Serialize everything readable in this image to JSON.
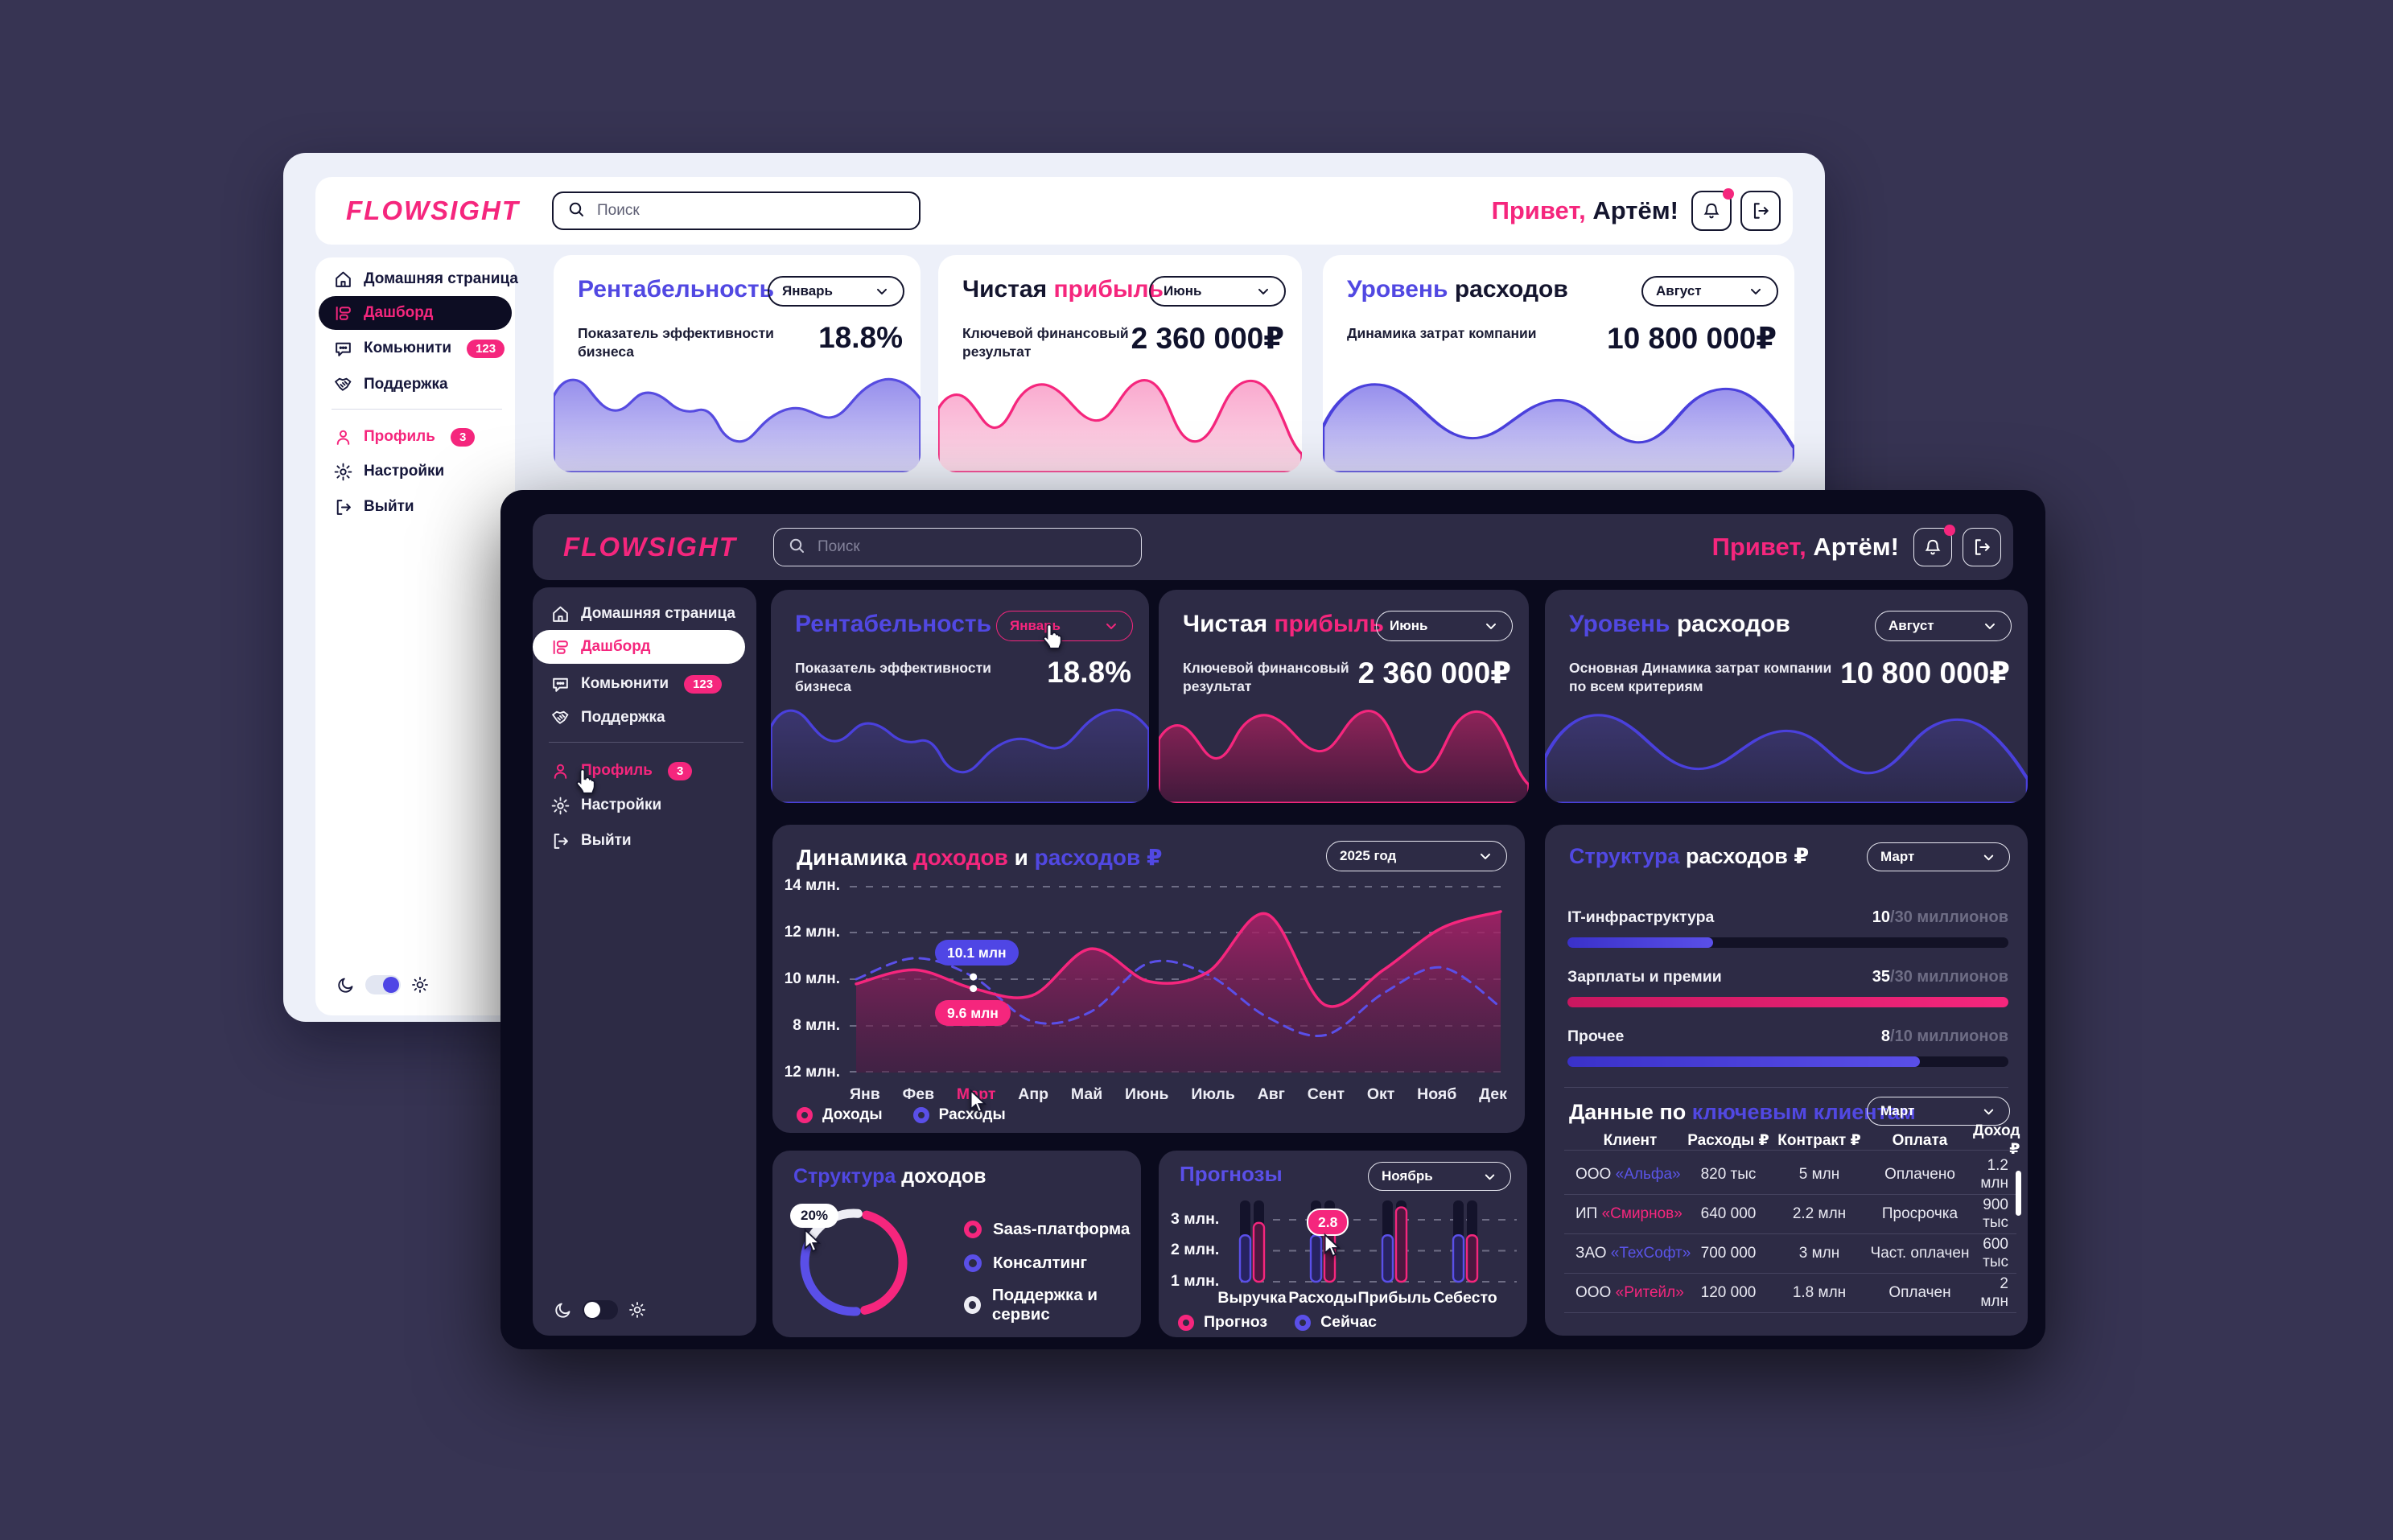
{
  "brand": {
    "logo": "FLOWSIGHT"
  },
  "header": {
    "search_placeholder": "Поиск",
    "greeting_hello": "Привет,",
    "greeting_name": " Артём!"
  },
  "sidebar": {
    "home": "Домашняя страница",
    "dashboard": "Дашборд",
    "community": "Комьюнити",
    "community_badge": "123",
    "support": "Поддержка",
    "profile": "Профиль",
    "profile_badge": "3",
    "settings": "Настройки",
    "logout": "Выйти"
  },
  "light_kpis": {
    "k1": {
      "title": "Рентабельность",
      "period": "Январь",
      "desc": "Показатель эффективности бизнеса",
      "value": "18.8%"
    },
    "k2": {
      "title_a": "Чистая",
      "title_b": "прибыль",
      "period": "Июнь",
      "desc": "Ключевой финансовый результат",
      "value": "2 360 000₽"
    },
    "k3": {
      "title_a": "Уровень",
      "title_b": "расходов",
      "period": "Август",
      "desc": "Динамика затрат компании",
      "value": "10 800 000₽"
    }
  },
  "dark_kpis": {
    "k1": {
      "title": "Рентабельность",
      "period": "Январь",
      "desc": "Показатель эффективности бизнеса",
      "value": "18.8%"
    },
    "k2": {
      "title_a": "Чистая",
      "title_b": "прибыль",
      "period": "Июнь",
      "desc": "Ключевой финансовый результат",
      "value": "2 360 000₽"
    },
    "k3": {
      "title_a": "Уровень",
      "title_b": "расходов",
      "period": "Август",
      "desc": "Основная Динамика затрат компании по всем критериям",
      "value": "10 800 000₽"
    }
  },
  "dynamics": {
    "title_a": "Динамика",
    "title_b": "доходов",
    "title_c": "и",
    "title_d": "расходов ₽",
    "period": "2025 год",
    "y_labels": [
      "14 млн.",
      "12 млн.",
      "10 млн.",
      "8 млн.",
      "12 млн."
    ],
    "tooltip_expenses": "10.1 млн",
    "tooltip_income": "9.6 млн",
    "legend_income": "Доходы",
    "legend_expenses": "Расходы"
  },
  "expenses_structure": {
    "title_a": "Структура",
    "title_b": "расходов ₽",
    "period": "Март",
    "items": [
      {
        "label": "IT-инфраструктура",
        "value": "10",
        "total": "/30 миллионов"
      },
      {
        "label": "Зарплаты и премии",
        "value": "35",
        "total": "/30 миллионов"
      },
      {
        "label": "Прочее",
        "value": "8",
        "total": "/10 миллионов"
      }
    ]
  },
  "clients": {
    "title_a": "Данные по",
    "title_b": "ключевым клиентам",
    "period": "Март",
    "headers": [
      "Клиент",
      "Расходы ₽",
      "Контракт ₽",
      "Оплата",
      "Доход ₽"
    ],
    "rows": [
      {
        "org": "ООО",
        "name": "«Альфа»",
        "expenses": "820 тыс",
        "contract": "5 млн",
        "payment": "Оплачено",
        "income": "1.2 млн"
      },
      {
        "org": "ИП",
        "name": "«Смирнов»",
        "expenses": "640 000",
        "contract": "2.2 млн",
        "payment": "Просрочка",
        "income": "900 тыс"
      },
      {
        "org": "ЗАО",
        "name": "«ТехСофт»",
        "expenses": "700 000",
        "contract": "3 млн",
        "payment": "Част. оплачен",
        "income": "600 тыс"
      },
      {
        "org": "ООО",
        "name": "«Ритейл»",
        "expenses": "120 000",
        "contract": "1.8 млн",
        "payment": "Оплачен",
        "income": "2 млн"
      }
    ]
  },
  "income_structure": {
    "title_a": "Структура",
    "title_b": "доходов",
    "tooltip": "20%",
    "legend": [
      "Saas-платформа",
      "Консалтинг",
      "Поддержка и сервис"
    ]
  },
  "forecast": {
    "title": "Прогнозы",
    "period": "Ноябрь",
    "y_labels": [
      "3 млн.",
      "2 млн.",
      "1 млн."
    ],
    "categories": [
      "Выручка",
      "Расходы",
      "Прибыль",
      "Себесто"
    ],
    "tooltip": "2.8",
    "legend_forecast": "Прогноз",
    "legend_now": "Сейчас"
  },
  "chart_data": [
    {
      "type": "line",
      "title": "Динамика доходов и расходов ₽ (2025 год)",
      "x": [
        "Янв",
        "Фев",
        "Март",
        "Апр",
        "Май",
        "Июнь",
        "Июль",
        "Авг",
        "Сент",
        "Окт",
        "Нояб",
        "Дек"
      ],
      "series": [
        {
          "name": "Доходы",
          "color": "#F5267D",
          "style": "solid-area",
          "values": [
            9.8,
            10.4,
            9.6,
            9.3,
            11.3,
            9.9,
            10.3,
            12.8,
            8.9,
            10.4,
            12.2,
            12.9
          ]
        },
        {
          "name": "Расходы",
          "color": "#5A4FE8",
          "style": "dashed",
          "values": [
            10.0,
            10.9,
            10.1,
            8.2,
            8.6,
            10.7,
            10.2,
            8.4,
            7.6,
            9.4,
            10.5,
            8.8
          ]
        }
      ],
      "highlight": {
        "month": "Март",
        "income_mln": 9.6,
        "expenses_mln": 10.1
      },
      "ylabel": "млн ₽",
      "ylim": [
        6,
        14
      ],
      "grid": true,
      "legend_position": "bottom"
    },
    {
      "type": "pie",
      "title": "Структура доходов",
      "labels": [
        "Saas-платформа",
        "Консалтинг",
        "Поддержка и сервис"
      ],
      "values": [
        45,
        35,
        20
      ],
      "colors": [
        "#F5267D",
        "#5A4FE8",
        "#EDEDF4"
      ],
      "highlight": {
        "label": "Поддержка и сервис",
        "value_pct": 20
      }
    },
    {
      "type": "bar",
      "title": "Прогнозы (Ноябрь)",
      "categories": [
        "Выручка",
        "Расходы",
        "Прибыль",
        "Себесто"
      ],
      "series": [
        {
          "name": "Сейчас",
          "color": "#5A4FE8",
          "values": [
            2.5,
            2.5,
            2.5,
            2.5
          ]
        },
        {
          "name": "Прогноз",
          "color": "#F5267D",
          "values": [
            2.9,
            2.8,
            3.4,
            2.5
          ]
        }
      ],
      "ylim": [
        1,
        3.6
      ],
      "highlight": {
        "category": "Расходы",
        "series": "Прогноз",
        "value": 2.8
      }
    },
    {
      "type": "bar",
      "title": "Структура расходов ₽ (Март)",
      "categories": [
        "IT-инфраструктура",
        "Зарплаты и премии",
        "Прочее"
      ],
      "values": [
        10,
        35,
        8
      ],
      "totals": [
        30,
        30,
        10
      ],
      "unit": "миллионов"
    }
  ]
}
